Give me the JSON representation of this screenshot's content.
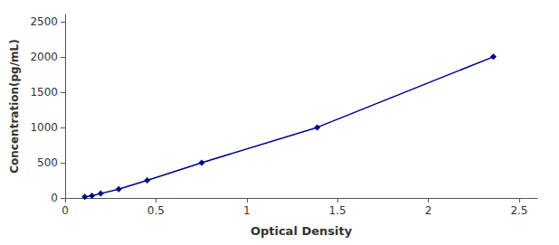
{
  "chart_data": {
    "type": "line",
    "x": [
      0.108,
      0.148,
      0.196,
      0.295,
      0.452,
      0.752,
      1.388,
      2.358
    ],
    "values": [
      15.625,
      31.25,
      62.5,
      125,
      250,
      500,
      1000,
      2000
    ],
    "color": "#00008B",
    "marker": "diamond",
    "xlabel": "Optical Density",
    "ylabel": "Concentration(pg/mL)",
    "xlim": [
      0.0,
      2.6
    ],
    "ylim": [
      0,
      2600
    ],
    "xticks": [
      0,
      0.5,
      1,
      1.5,
      2,
      2.5
    ],
    "yticks": [
      0,
      500,
      1000,
      1500,
      2000,
      2500
    ],
    "grid": false
  }
}
